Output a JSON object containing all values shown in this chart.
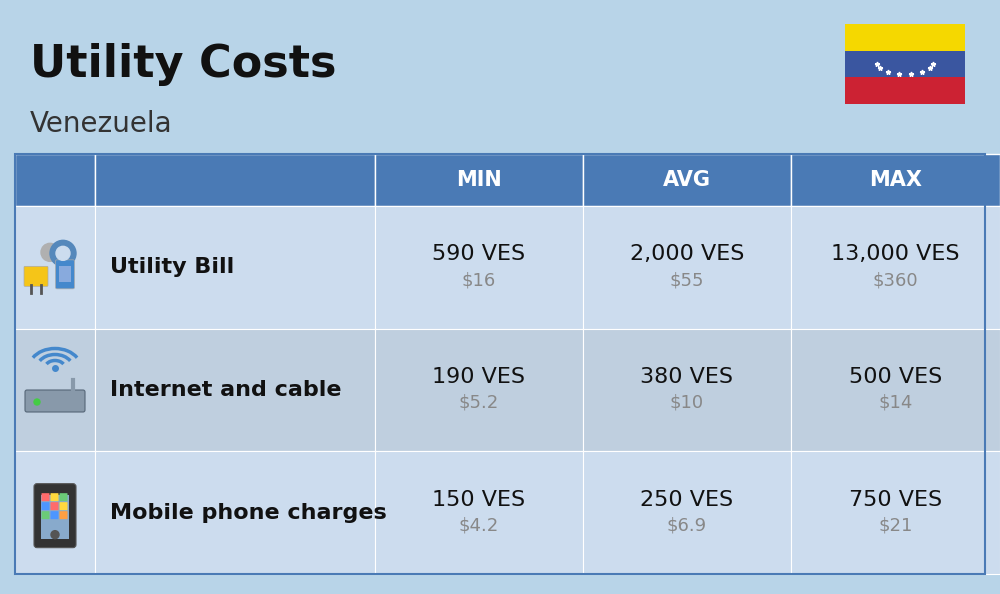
{
  "title": "Utility Costs",
  "subtitle": "Venezuela",
  "background_color": "#b8d4e8",
  "header_bg_color": "#4a7ab5",
  "header_text_color": "#ffffff",
  "row_bg_color_1": "#ccdcee",
  "row_bg_color_2": "#bfcfdf",
  "table_border_color": "#4a7ab5",
  "columns": [
    "MIN",
    "AVG",
    "MAX"
  ],
  "rows": [
    {
      "label": "Utility Bill",
      "min_ves": "590 VES",
      "min_usd": "$16",
      "avg_ves": "2,000 VES",
      "avg_usd": "$55",
      "max_ves": "13,000 VES",
      "max_usd": "$360",
      "icon": "utility"
    },
    {
      "label": "Internet and cable",
      "min_ves": "190 VES",
      "min_usd": "$5.2",
      "avg_ves": "380 VES",
      "avg_usd": "$10",
      "max_ves": "500 VES",
      "max_usd": "$14",
      "icon": "internet"
    },
    {
      "label": "Mobile phone charges",
      "min_ves": "150 VES",
      "min_usd": "$4.2",
      "avg_ves": "250 VES",
      "avg_usd": "$6.9",
      "max_ves": "750 VES",
      "max_usd": "$21",
      "icon": "mobile"
    }
  ],
  "flag_yellow": "#f5d800",
  "flag_blue": "#3a56a0",
  "flag_red": "#cc2233",
  "title_fontsize": 32,
  "subtitle_fontsize": 20,
  "header_fontsize": 15,
  "cell_ves_fontsize": 16,
  "cell_usd_fontsize": 13,
  "label_fontsize": 16
}
